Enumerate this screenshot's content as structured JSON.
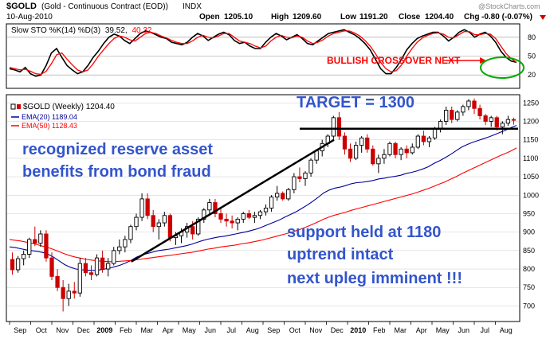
{
  "header": {
    "symbol": "$GOLD",
    "description": "(Gold - Continuous Contract (EOD))",
    "exchange": "INDX",
    "date": "10-Aug-2010",
    "watermark": "@StockCharts.com",
    "open_label": "Open",
    "open_value": "1205.10",
    "high_label": "High",
    "high_value": "1209.60",
    "low_label": "Low",
    "low_value": "1191.20",
    "close_label": "Close",
    "close_value": "1204.40",
    "chg_label": "Chg",
    "chg_value": "-0.80 (-0.07%)"
  },
  "sto_panel": {
    "legend": "Slow STO %K(14) %D(3) 39.52, 40.32",
    "legend_name": "Slow STO %K(14) %D(3)",
    "legend_k": "39.52",
    "legend_d": "40.32",
    "y_ticks": [
      80,
      50,
      20
    ],
    "ylim": [
      0,
      100
    ],
    "annotation": "BULLISH CROSSOVER NEXT"
  },
  "price_panel": {
    "legend_main": "$GOLD (Weekly) 1204.40",
    "legend_ema20": "EMA(20) 1189.04",
    "legend_ema50": "EMA(50) 1128.43",
    "annotation_target": "TARGET = 1300",
    "annotation_left_1": "recognized reserve asset",
    "annotation_left_2": "benefits from bond fraud",
    "annotation_right_1": "support held at 1180",
    "annotation_right_2": "uptrend intact",
    "annotation_right_3": "next upleg imminent !!!"
  },
  "x_axis_labels": [
    "Sep",
    "Oct",
    "Nov",
    "Dec",
    "2009",
    "Feb",
    "Mar",
    "Apr",
    "May",
    "Jun",
    "Jul",
    "Aug",
    "Sep",
    "Oct",
    "Nov",
    "Dec",
    "2010",
    "Feb",
    "Mar",
    "Apr",
    "May",
    "Jun",
    "Jul",
    "Aug"
  ],
  "colors": {
    "up_candle": "#000000",
    "down_candle": "#cc0000",
    "sto_k": "#000000",
    "sto_d": "#ff0000",
    "ema20": "#000099",
    "ema50": "#ff0000",
    "annotation_blue": "#3355cc",
    "annotation_red": "#ff0000",
    "ellipse": "#00aa00"
  },
  "chart_data": [
    {
      "type": "line",
      "title": "Slow STO %K(14) %D(3)",
      "ylim": [
        0,
        100
      ],
      "grid": true,
      "series": [
        {
          "name": "%K",
          "values": [
            30,
            28,
            25,
            32,
            22,
            18,
            20,
            35,
            55,
            62,
            48,
            35,
            28,
            22,
            25,
            35,
            48,
            58,
            70,
            80,
            85,
            82,
            75,
            70,
            78,
            86,
            90,
            88,
            84,
            80,
            78,
            72,
            70,
            68,
            72,
            80,
            86,
            82,
            75,
            80,
            85,
            88,
            84,
            75,
            70,
            72,
            66,
            62,
            62,
            72,
            80,
            86,
            82,
            76,
            80,
            84,
            78,
            70,
            68,
            74,
            80,
            86,
            88,
            90,
            92,
            88,
            84,
            78,
            70,
            60,
            45,
            30,
            22,
            22,
            32,
            45,
            60,
            70,
            78,
            82,
            85,
            88,
            88,
            82,
            74,
            80,
            88,
            92,
            88,
            80,
            85,
            88,
            82,
            72,
            58,
            48,
            42,
            40
          ]
        },
        {
          "name": "%D",
          "values": [
            32,
            30,
            28,
            29,
            26,
            22,
            21,
            26,
            38,
            52,
            55,
            45,
            36,
            28,
            25,
            28,
            38,
            50,
            60,
            70,
            78,
            82,
            80,
            76,
            74,
            80,
            86,
            88,
            86,
            82,
            79,
            75,
            72,
            70,
            70,
            74,
            80,
            83,
            80,
            79,
            82,
            86,
            86,
            80,
            74,
            72,
            70,
            66,
            63,
            66,
            74,
            80,
            83,
            80,
            79,
            82,
            80,
            74,
            70,
            72,
            76,
            82,
            86,
            88,
            90,
            90,
            87,
            82,
            75,
            66,
            54,
            40,
            30,
            25,
            27,
            36,
            50,
            62,
            72,
            79,
            83,
            86,
            87,
            85,
            80,
            79,
            84,
            89,
            89,
            84,
            84,
            86,
            85,
            78,
            66,
            54,
            46,
            40
          ]
        }
      ]
    },
    {
      "type": "line",
      "title": "$GOLD (Weekly) 1204.40",
      "ylim": [
        660,
        1270
      ],
      "x_range": [
        "2008-08",
        "2010-08"
      ],
      "y_ticks": [
        700,
        750,
        800,
        850,
        900,
        950,
        1000,
        1050,
        1100,
        1150,
        1200,
        1250
      ],
      "grid": true,
      "candles": [
        {
          "o": 826,
          "h": 845,
          "l": 785,
          "c": 798
        },
        {
          "o": 798,
          "h": 835,
          "l": 790,
          "c": 828
        },
        {
          "o": 828,
          "h": 850,
          "l": 810,
          "c": 840
        },
        {
          "o": 840,
          "h": 885,
          "l": 830,
          "c": 880
        },
        {
          "o": 880,
          "h": 915,
          "l": 862,
          "c": 870
        },
        {
          "o": 870,
          "h": 905,
          "l": 860,
          "c": 895
        },
        {
          "o": 895,
          "h": 905,
          "l": 820,
          "c": 830
        },
        {
          "o": 830,
          "h": 845,
          "l": 770,
          "c": 780
        },
        {
          "o": 780,
          "h": 800,
          "l": 740,
          "c": 750
        },
        {
          "o": 750,
          "h": 770,
          "l": 685,
          "c": 720
        },
        {
          "o": 720,
          "h": 760,
          "l": 700,
          "c": 740
        },
        {
          "o": 740,
          "h": 765,
          "l": 720,
          "c": 735
        },
        {
          "o": 735,
          "h": 830,
          "l": 725,
          "c": 815
        },
        {
          "o": 815,
          "h": 830,
          "l": 780,
          "c": 790
        },
        {
          "o": 790,
          "h": 810,
          "l": 770,
          "c": 785
        },
        {
          "o": 785,
          "h": 840,
          "l": 780,
          "c": 830
        },
        {
          "o": 830,
          "h": 850,
          "l": 790,
          "c": 800
        },
        {
          "o": 800,
          "h": 830,
          "l": 780,
          "c": 815
        },
        {
          "o": 815,
          "h": 860,
          "l": 810,
          "c": 850
        },
        {
          "o": 850,
          "h": 880,
          "l": 840,
          "c": 860
        },
        {
          "o": 860,
          "h": 890,
          "l": 845,
          "c": 880
        },
        {
          "o": 880,
          "h": 920,
          "l": 870,
          "c": 915
        },
        {
          "o": 915,
          "h": 950,
          "l": 905,
          "c": 940
        },
        {
          "o": 940,
          "h": 1005,
          "l": 930,
          "c": 990
        },
        {
          "o": 990,
          "h": 1005,
          "l": 935,
          "c": 945
        },
        {
          "o": 945,
          "h": 960,
          "l": 900,
          "c": 915
        },
        {
          "o": 915,
          "h": 935,
          "l": 880,
          "c": 925
        },
        {
          "o": 925,
          "h": 955,
          "l": 915,
          "c": 945
        },
        {
          "o": 945,
          "h": 950,
          "l": 875,
          "c": 885
        },
        {
          "o": 885,
          "h": 900,
          "l": 865,
          "c": 890
        },
        {
          "o": 890,
          "h": 910,
          "l": 870,
          "c": 900
        },
        {
          "o": 900,
          "h": 925,
          "l": 885,
          "c": 915
        },
        {
          "o": 915,
          "h": 930,
          "l": 880,
          "c": 895
        },
        {
          "o": 895,
          "h": 940,
          "l": 890,
          "c": 935
        },
        {
          "o": 935,
          "h": 965,
          "l": 925,
          "c": 960
        },
        {
          "o": 960,
          "h": 990,
          "l": 950,
          "c": 980
        },
        {
          "o": 980,
          "h": 990,
          "l": 940,
          "c": 950
        },
        {
          "o": 950,
          "h": 965,
          "l": 925,
          "c": 935
        },
        {
          "o": 935,
          "h": 950,
          "l": 915,
          "c": 930
        },
        {
          "o": 930,
          "h": 945,
          "l": 910,
          "c": 925
        },
        {
          "o": 925,
          "h": 940,
          "l": 905,
          "c": 935
        },
        {
          "o": 935,
          "h": 955,
          "l": 925,
          "c": 950
        },
        {
          "o": 950,
          "h": 960,
          "l": 935,
          "c": 940
        },
        {
          "o": 940,
          "h": 955,
          "l": 925,
          "c": 945
        },
        {
          "o": 945,
          "h": 960,
          "l": 935,
          "c": 955
        },
        {
          "o": 955,
          "h": 975,
          "l": 945,
          "c": 965
        },
        {
          "o": 965,
          "h": 1000,
          "l": 955,
          "c": 995
        },
        {
          "o": 995,
          "h": 1025,
          "l": 985,
          "c": 1005
        },
        {
          "o": 1005,
          "h": 1010,
          "l": 985,
          "c": 990
        },
        {
          "o": 990,
          "h": 1020,
          "l": 985,
          "c": 1015
        },
        {
          "o": 1015,
          "h": 1060,
          "l": 1005,
          "c": 1050
        },
        {
          "o": 1050,
          "h": 1075,
          "l": 1035,
          "c": 1045
        },
        {
          "o": 1045,
          "h": 1065,
          "l": 1025,
          "c": 1060
        },
        {
          "o": 1060,
          "h": 1100,
          "l": 1050,
          "c": 1095
        },
        {
          "o": 1095,
          "h": 1125,
          "l": 1085,
          "c": 1120
        },
        {
          "o": 1120,
          "h": 1150,
          "l": 1105,
          "c": 1140
        },
        {
          "o": 1140,
          "h": 1165,
          "l": 1130,
          "c": 1160
        },
        {
          "o": 1160,
          "h": 1215,
          "l": 1150,
          "c": 1210
        },
        {
          "o": 1210,
          "h": 1225,
          "l": 1150,
          "c": 1160
        },
        {
          "o": 1160,
          "h": 1170,
          "l": 1110,
          "c": 1125
        },
        {
          "o": 1125,
          "h": 1140,
          "l": 1090,
          "c": 1100
        },
        {
          "o": 1100,
          "h": 1145,
          "l": 1095,
          "c": 1135
        },
        {
          "o": 1135,
          "h": 1160,
          "l": 1115,
          "c": 1155
        },
        {
          "o": 1155,
          "h": 1165,
          "l": 1115,
          "c": 1125
        },
        {
          "o": 1125,
          "h": 1135,
          "l": 1080,
          "c": 1085
        },
        {
          "o": 1085,
          "h": 1110,
          "l": 1060,
          "c": 1100
        },
        {
          "o": 1100,
          "h": 1125,
          "l": 1085,
          "c": 1110
        },
        {
          "o": 1110,
          "h": 1145,
          "l": 1105,
          "c": 1140
        },
        {
          "o": 1140,
          "h": 1145,
          "l": 1100,
          "c": 1110
        },
        {
          "o": 1110,
          "h": 1130,
          "l": 1095,
          "c": 1125
        },
        {
          "o": 1125,
          "h": 1135,
          "l": 1100,
          "c": 1115
        },
        {
          "o": 1115,
          "h": 1140,
          "l": 1110,
          "c": 1130
        },
        {
          "o": 1130,
          "h": 1165,
          "l": 1125,
          "c": 1160
        },
        {
          "o": 1160,
          "h": 1175,
          "l": 1135,
          "c": 1145
        },
        {
          "o": 1145,
          "h": 1160,
          "l": 1130,
          "c": 1155
        },
        {
          "o": 1155,
          "h": 1185,
          "l": 1150,
          "c": 1180
        },
        {
          "o": 1180,
          "h": 1205,
          "l": 1170,
          "c": 1200
        },
        {
          "o": 1200,
          "h": 1240,
          "l": 1190,
          "c": 1230
        },
        {
          "o": 1230,
          "h": 1240,
          "l": 1195,
          "c": 1205
        },
        {
          "o": 1205,
          "h": 1230,
          "l": 1200,
          "c": 1225
        },
        {
          "o": 1225,
          "h": 1245,
          "l": 1215,
          "c": 1240
        },
        {
          "o": 1240,
          "h": 1260,
          "l": 1230,
          "c": 1255
        },
        {
          "o": 1255,
          "h": 1262,
          "l": 1220,
          "c": 1235
        },
        {
          "o": 1235,
          "h": 1245,
          "l": 1205,
          "c": 1215
        },
        {
          "o": 1215,
          "h": 1220,
          "l": 1190,
          "c": 1200
        },
        {
          "o": 1200,
          "h": 1215,
          "l": 1185,
          "c": 1210
        },
        {
          "o": 1210,
          "h": 1215,
          "l": 1175,
          "c": 1185
        },
        {
          "o": 1185,
          "h": 1200,
          "l": 1165,
          "c": 1195
        },
        {
          "o": 1195,
          "h": 1215,
          "l": 1188,
          "c": 1205
        },
        {
          "o": 1205,
          "h": 1210,
          "l": 1191,
          "c": 1204
        }
      ],
      "series": [
        {
          "name": "EMA(20)",
          "values": [
            860,
            858,
            855,
            852,
            850,
            848,
            845,
            840,
            832,
            822,
            812,
            805,
            800,
            798,
            797,
            796,
            797,
            799,
            802,
            806,
            810,
            816,
            823,
            832,
            838,
            842,
            846,
            850,
            852,
            854,
            857,
            860,
            863,
            867,
            872,
            877,
            881,
            884,
            887,
            889,
            892,
            895,
            898,
            901,
            905,
            909,
            915,
            921,
            927,
            933,
            941,
            948,
            955,
            964,
            973,
            983,
            994,
            1006,
            1014,
            1019,
            1022,
            1026,
            1031,
            1034,
            1035,
            1037,
            1040,
            1044,
            1046,
            1049,
            1051,
            1054,
            1059,
            1062,
            1066,
            1071,
            1077,
            1086,
            1093,
            1101,
            1110,
            1120,
            1130,
            1137,
            1143,
            1148,
            1153,
            1158,
            1164,
            1170,
            1176,
            1183,
            1189
          ]
        },
        {
          "name": "EMA(50)",
          "values": [
            880,
            878,
            876,
            873,
            870,
            866,
            862,
            858,
            853,
            847,
            841,
            836,
            832,
            829,
            826,
            824,
            822,
            821,
            820,
            820,
            821,
            822,
            823,
            825,
            827,
            829,
            831,
            833,
            835,
            837,
            839,
            841,
            843,
            845,
            848,
            851,
            854,
            856,
            859,
            861,
            863,
            865,
            868,
            870,
            873,
            876,
            879,
            883,
            887,
            891,
            895,
            899,
            904,
            909,
            915,
            921,
            928,
            935,
            941,
            946,
            950,
            954,
            959,
            963,
            967,
            971,
            975,
            979,
            983,
            987,
            991,
            995,
            999,
            1003,
            1008,
            1013,
            1018,
            1024,
            1030,
            1036,
            1043,
            1050,
            1058,
            1065,
            1072,
            1079,
            1086,
            1093,
            1100,
            1107,
            1113,
            1120,
            1128
          ]
        }
      ],
      "annotations": [
        "TARGET = 1300",
        "recognized reserve asset",
        "benefits from bond fraud",
        "support held at 1180",
        "uptrend intact",
        "next upleg imminent !!!"
      ],
      "reference_lines": [
        {
          "type": "horizontal",
          "value": 1180
        },
        {
          "type": "trendline",
          "from": [
            0.24,
            820
          ],
          "to": [
            0.64,
            1150
          ]
        }
      ]
    }
  ]
}
